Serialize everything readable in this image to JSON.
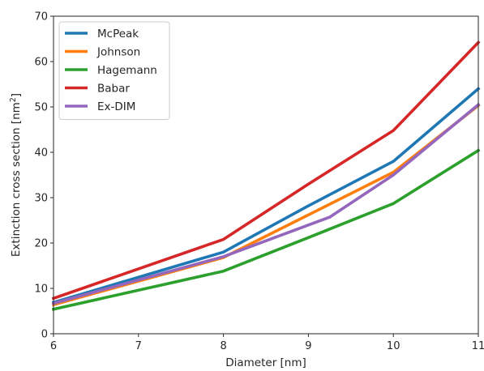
{
  "chart_data": {
    "type": "line",
    "xlabel": "Diameter [nm]",
    "ylabel_text": "Extinction cross section [nm",
    "ylabel_sup": "2",
    "ylabel_close": "]",
    "xlim": [
      6,
      11
    ],
    "ylim": [
      0,
      70
    ],
    "xticks": [
      6,
      7,
      8,
      9,
      10,
      11
    ],
    "yticks": [
      0,
      10,
      20,
      30,
      40,
      50,
      60,
      70
    ],
    "grid": false,
    "legend_position": "top-left",
    "series": [
      {
        "name": "McPeak",
        "color": "#1f77b4",
        "x": [
          6,
          8,
          9,
          10,
          11
        ],
        "y": [
          6.9,
          18.0,
          28.2,
          38.0,
          54.0
        ]
      },
      {
        "name": "Johnson",
        "color": "#ff7f0e",
        "x": [
          6,
          8,
          9,
          10,
          11
        ],
        "y": [
          6.4,
          16.8,
          26.2,
          35.6,
          50.3
        ]
      },
      {
        "name": "Hagemann",
        "color": "#2ca02c",
        "x": [
          6,
          8,
          9,
          10,
          11
        ],
        "y": [
          5.4,
          13.8,
          21.2,
          28.7,
          40.4
        ]
      },
      {
        "name": "Babar",
        "color": "#d62728",
        "x": [
          6,
          8,
          9,
          10,
          11
        ],
        "y": [
          7.8,
          20.8,
          33.0,
          44.8,
          64.2
        ]
      },
      {
        "name": "Ex-DIM",
        "color": "#9467bd",
        "x": [
          6,
          8,
          9.25,
          10,
          11
        ],
        "y": [
          6.7,
          17.0,
          25.7,
          35.0,
          50.5
        ]
      }
    ]
  }
}
